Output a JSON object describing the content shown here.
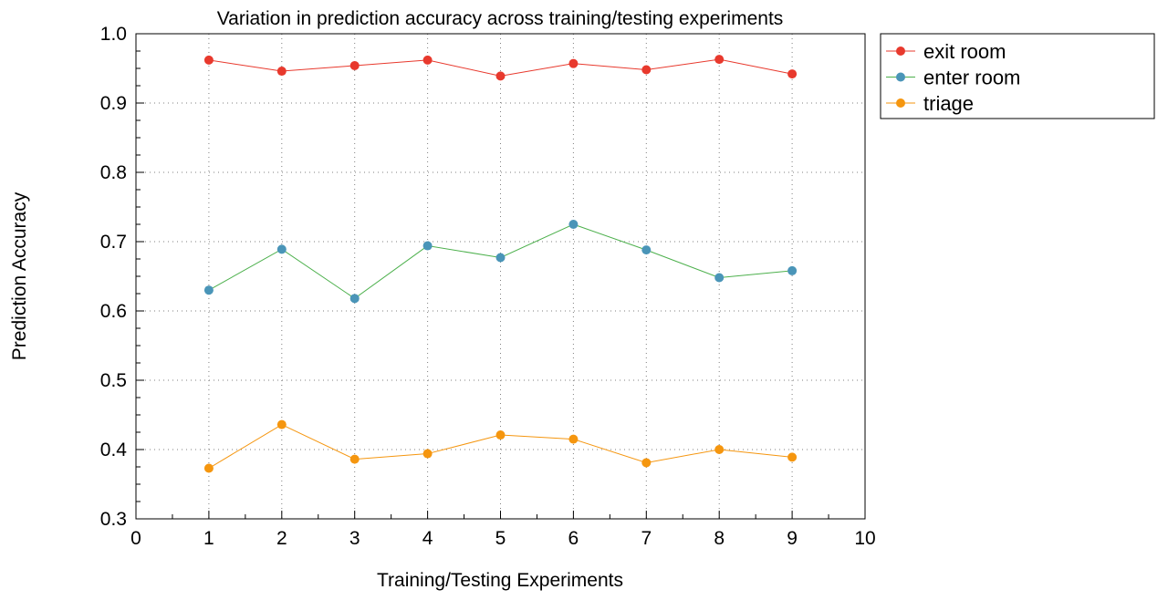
{
  "chart_data": {
    "type": "line",
    "title": "Variation in prediction accuracy across training/testing experiments",
    "xlabel": "Training/Testing Experiments",
    "ylabel": "Prediction Accuracy",
    "xlim": [
      0,
      10
    ],
    "ylim": [
      0.3,
      1.0
    ],
    "xticks": [
      0,
      1,
      2,
      3,
      4,
      5,
      6,
      7,
      8,
      9,
      10
    ],
    "xtick_labels": [
      "0",
      "1",
      "2",
      "3",
      "4",
      "5",
      "6",
      "7",
      "8",
      "9",
      "10"
    ],
    "yticks": [
      0.3,
      0.4,
      0.5,
      0.6,
      0.7,
      0.8,
      0.9,
      1.0
    ],
    "ytick_labels": [
      "0.3",
      "0.4",
      "0.5",
      "0.6",
      "0.7",
      "0.8",
      "0.9",
      "1.0"
    ],
    "grid": true,
    "legend_position": "outside-top-right",
    "x": [
      1,
      2,
      3,
      4,
      5,
      6,
      7,
      8,
      9
    ],
    "series": [
      {
        "name": "exit room",
        "values": [
          0.962,
          0.946,
          0.954,
          0.962,
          0.939,
          0.957,
          0.948,
          0.963,
          0.942
        ],
        "line_color": "#e8392d",
        "marker_color": "#e8392d"
      },
      {
        "name": "enter room",
        "values": [
          0.63,
          0.689,
          0.618,
          0.694,
          0.677,
          0.725,
          0.688,
          0.648,
          0.658
        ],
        "line_color": "#4cb04c",
        "marker_color": "#4a95b8"
      },
      {
        "name": "triage",
        "values": [
          0.373,
          0.436,
          0.386,
          0.394,
          0.421,
          0.415,
          0.381,
          0.4,
          0.389
        ],
        "line_color": "#f5960f",
        "marker_color": "#f5960f"
      }
    ]
  }
}
